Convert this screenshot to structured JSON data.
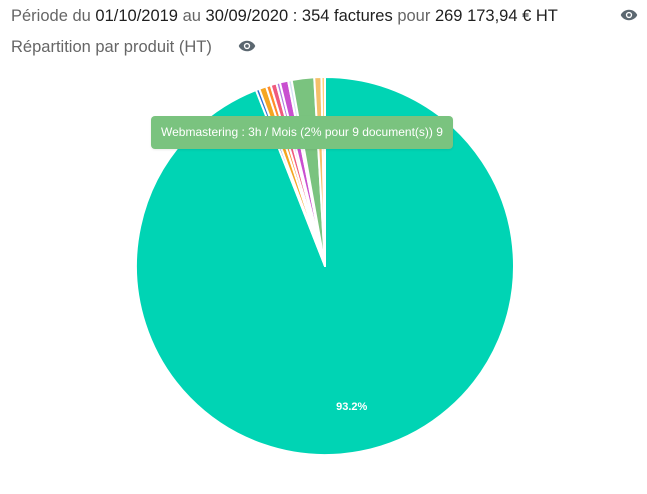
{
  "header": {
    "period_prefix": "Période du",
    "date_from": "01/10/2019",
    "connector_au": "au",
    "date_to": "30/09/2020",
    "separator": ":",
    "invoice_count": "354 factures",
    "connector_pour": "pour",
    "total_ht": "269 173,94 € HT",
    "eye_icon": "eye-icon"
  },
  "section": {
    "title": "Répartition par produit (HT)",
    "eye_icon": "eye-icon"
  },
  "tooltip": {
    "text": "Webmastering : 3h / Mois (2% pour 9 document(s))  9",
    "color": "#7ac37f"
  },
  "colors": {
    "main_slice": "#00d4b4",
    "text_muted": "#666666",
    "text_strong": "#1f1f1f",
    "eye": "#5b6770"
  },
  "chart_data": {
    "type": "pie",
    "start_angle_deg": 0,
    "direction": "clockwise",
    "labels_shown": [
      "93.2%"
    ],
    "slices": [
      {
        "value": 93.2,
        "color": "#00d4b4",
        "label": "93.2%"
      },
      {
        "value": 0.3,
        "color": "#2a6fd6",
        "label": ""
      },
      {
        "value": 0.6,
        "color": "#f5a623",
        "label": ""
      },
      {
        "value": 0.4,
        "color": "#ff8c2a",
        "label": ""
      },
      {
        "value": 0.5,
        "color": "#f05a7e",
        "label": ""
      },
      {
        "value": 0.3,
        "color": "#b07be0",
        "label": ""
      },
      {
        "value": 0.7,
        "color": "#c94fd0",
        "label": ""
      },
      {
        "value": 0.3,
        "color": "#d3e3f3",
        "label": ""
      },
      {
        "value": 1.9,
        "color": "#7ac37f",
        "label": ""
      },
      {
        "value": 0.6,
        "color": "#f4c06a",
        "label": ""
      },
      {
        "value": 0.3,
        "color": "#ffd27a",
        "label": ""
      }
    ]
  }
}
